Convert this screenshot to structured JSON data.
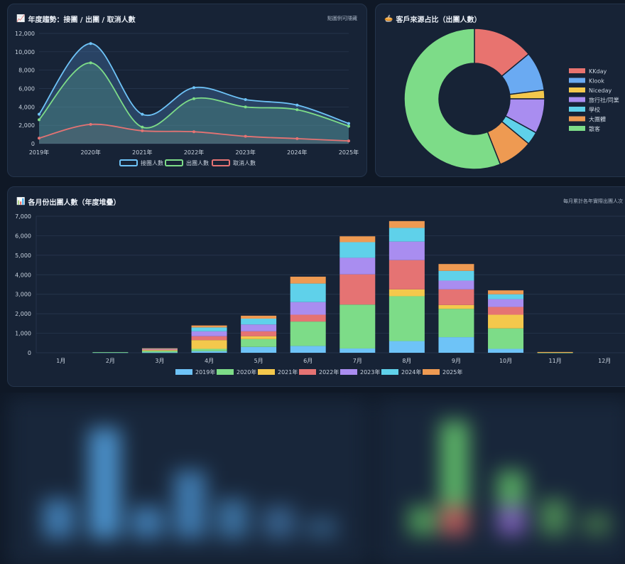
{
  "trend_card": {
    "icon": "chart-increasing-icon",
    "title": "年度趨勢：接團 / 出團 / 取消人數",
    "note": "點圖例可隱藏"
  },
  "pie_card": {
    "icon": "pie-icon",
    "title": "客戶來源占比（出團人數）"
  },
  "monthly_card": {
    "icon": "bar-chart-icon",
    "title": "各月份出團人數（年度堆疊）",
    "note": "每月累計各年實際出團人次"
  },
  "colors": {
    "blue": "#6ec3f7",
    "green": "#7ddc88",
    "red": "#e57373",
    "yellow": "#f4c84c",
    "purple": "#a98df0",
    "cyan": "#5fd1ea",
    "orange": "#ee9a52",
    "kkday": "#e8736f",
    "klook": "#6aaaf2"
  },
  "chart_data": [
    {
      "type": "line",
      "title": "年度趨勢：接團 / 出團 / 取消人數",
      "x": [
        "2019年",
        "2020年",
        "2021年",
        "2022年",
        "2023年",
        "2024年",
        "2025年"
      ],
      "ylim": [
        0,
        12000
      ],
      "yticks": [
        "0",
        "2,000",
        "4,000",
        "6,000",
        "8,000",
        "10,000",
        "12,000"
      ],
      "grid": true,
      "legend_position": "bottom",
      "series": [
        {
          "name": "接團人數",
          "values": [
            3200,
            10900,
            3200,
            6100,
            4800,
            4200,
            2200
          ]
        },
        {
          "name": "出團人數",
          "values": [
            2600,
            8800,
            1800,
            4900,
            4000,
            3700,
            1900
          ]
        },
        {
          "name": "取消人數",
          "values": [
            600,
            2100,
            1400,
            1300,
            800,
            550,
            300
          ]
        }
      ]
    },
    {
      "type": "pie",
      "title": "客戶來源占比（出團人數）",
      "legend_position": "right",
      "labels": [
        "KKday",
        "Klook",
        "Niceday",
        "旅行社/同業",
        "學校",
        "大團體",
        "散客"
      ],
      "values": [
        14.0,
        9.0,
        2.0,
        8.0,
        3.0,
        8.0,
        56.0
      ]
    },
    {
      "type": "bar",
      "stacked": true,
      "title": "各月份出團人數（年度堆疊）",
      "categories": [
        "1月",
        "2月",
        "3月",
        "4月",
        "5月",
        "6月",
        "7月",
        "8月",
        "9月",
        "10月",
        "11月",
        "12月"
      ],
      "ylim": [
        0,
        7000
      ],
      "yticks": [
        "0",
        "1,000",
        "2,000",
        "3,000",
        "4,000",
        "5,000",
        "6,000",
        "7,000"
      ],
      "grid": true,
      "legend_position": "bottom",
      "series": [
        {
          "name": "2019年",
          "values": [
            0,
            20,
            20,
            80,
            300,
            350,
            220,
            600,
            800,
            200,
            0,
            0
          ]
        },
        {
          "name": "2020年",
          "values": [
            0,
            10,
            80,
            120,
            400,
            1250,
            2250,
            2300,
            1450,
            1050,
            10,
            0
          ]
        },
        {
          "name": "2021年",
          "values": [
            0,
            0,
            40,
            450,
            150,
            0,
            0,
            350,
            200,
            700,
            20,
            0
          ]
        },
        {
          "name": "2022年",
          "values": [
            0,
            0,
            40,
            200,
            250,
            350,
            1550,
            1500,
            800,
            400,
            0,
            0
          ]
        },
        {
          "name": "2023年",
          "values": [
            0,
            0,
            20,
            250,
            350,
            650,
            850,
            950,
            450,
            400,
            0,
            0
          ]
        },
        {
          "name": "2024年",
          "values": [
            0,
            0,
            20,
            200,
            300,
            950,
            800,
            700,
            500,
            250,
            0,
            0
          ]
        },
        {
          "name": "2025年",
          "values": [
            0,
            0,
            10,
            100,
            150,
            350,
            300,
            350,
            350,
            200,
            10,
            0
          ]
        }
      ]
    }
  ]
}
